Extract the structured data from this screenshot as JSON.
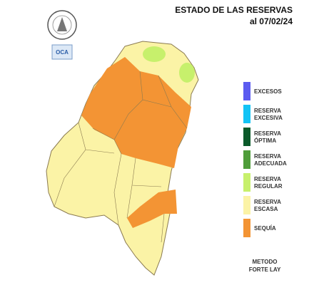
{
  "header": {
    "title": "ESTADO DE LAS RESERVAS",
    "date": "al 07/02/24",
    "badge": "OCA"
  },
  "legend": [
    {
      "lines": [
        "EXCESOS"
      ],
      "color": "#5b5bf0"
    },
    {
      "lines": [
        "RESERVA",
        "EXCESIVA"
      ],
      "color": "#12c3f5"
    },
    {
      "lines": [
        "RESERVA",
        "ÓPTIMA"
      ],
      "color": "#0b5a2a"
    },
    {
      "lines": [
        "RESERVA",
        "ADECUADA"
      ],
      "color": "#4f9d3a"
    },
    {
      "lines": [
        "RESERVA",
        "REGULAR"
      ],
      "color": "#c7f06c"
    },
    {
      "lines": [
        "RESERVA",
        "ESCASA"
      ],
      "color": "#fbf3a6"
    },
    {
      "lines": [
        "SEQUÍA"
      ],
      "color": "#f39434"
    }
  ],
  "method": [
    "METODO",
    "FORTE LAY"
  ]
}
